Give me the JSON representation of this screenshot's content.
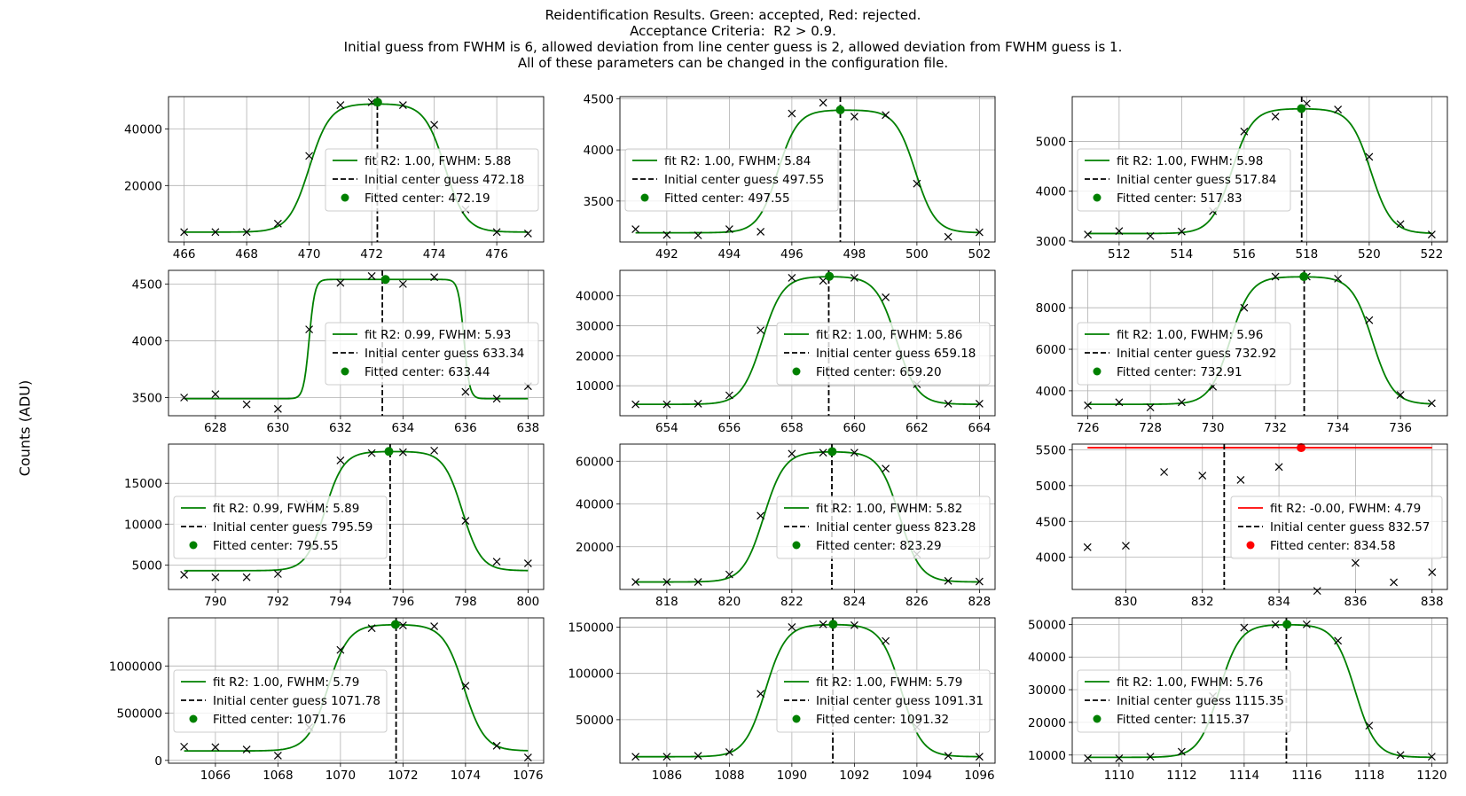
{
  "figure": {
    "title_lines": [
      "Reidentification Results. Green: accepted, Red: rejected.",
      "Acceptance Criteria:  R2 > 0.9.",
      "Initial guess from FWHM is 6, allowed deviation from line center guess is 2, allowed deviation from FWHM guess is 1.",
      "All of these parameters can be changed in the configuration file."
    ],
    "ylabel": "Counts (ADU)"
  },
  "colors": {
    "accepted": "#008000",
    "rejected": "#ff0000",
    "data_marker": "#000000",
    "grid": "#b0b0b0",
    "guess_line": "#000000"
  },
  "chart_data": [
    {
      "type": "line",
      "status": "accepted",
      "x": [
        466,
        467,
        468,
        469,
        470,
        471,
        472,
        473,
        474,
        475,
        476,
        477
      ],
      "y": [
        3500,
        3500,
        3500,
        6500,
        30500,
        48500,
        49500,
        48500,
        41500,
        11500,
        3500,
        3000
      ],
      "xlim": [
        465.5,
        477.5
      ],
      "ylim": [
        0,
        51500
      ],
      "xticks": [
        466,
        468,
        470,
        472,
        474,
        476
      ],
      "yticks": [
        20000,
        40000
      ],
      "fit": {
        "baseline": 3500,
        "peak": 49000,
        "left": 470.0,
        "right": 474.35,
        "steep": 0.33
      },
      "guess_center": 472.18,
      "fitted_center": 472.19,
      "fitted_peak": 49500,
      "legend": {
        "fit": "fit R2: 1.00, FWHM: 5.88",
        "guess": "Initial center guess 472.18",
        "center": "Fitted center: 472.19"
      },
      "legend_loc": "center right"
    },
    {
      "type": "line",
      "status": "accepted",
      "x": [
        491,
        492,
        493,
        494,
        495,
        496,
        497,
        498,
        499,
        500,
        501,
        502
      ],
      "y": [
        3225,
        3170,
        3165,
        3225,
        3200,
        4355,
        4460,
        4325,
        4340,
        3670,
        3150,
        3195
      ],
      "xlim": [
        490.5,
        502.5
      ],
      "ylim": [
        3100,
        4520
      ],
      "xticks": [
        492,
        494,
        496,
        498,
        500,
        502
      ],
      "yticks": [
        3500,
        4000,
        4500
      ],
      "fit": {
        "baseline": 3190,
        "peak": 4390,
        "left": 495.55,
        "right": 499.95,
        "steep": 0.32
      },
      "guess_center": 497.55,
      "fitted_center": 497.55,
      "fitted_peak": 4390,
      "legend": {
        "fit": "fit R2: 1.00, FWHM: 5.84",
        "guess": "Initial center guess 497.55",
        "center": "Fitted center: 497.55"
      },
      "legend_loc": "center left"
    },
    {
      "type": "line",
      "status": "accepted",
      "x": [
        511,
        512,
        513,
        514,
        515,
        516,
        517,
        518,
        519,
        520,
        521,
        522
      ],
      "y": [
        3130,
        3200,
        3100,
        3190,
        3600,
        5200,
        5500,
        5760,
        5640,
        4690,
        3340,
        3130
      ],
      "xlim": [
        510.5,
        522.5
      ],
      "ylim": [
        2980,
        5900
      ],
      "xticks": [
        512,
        514,
        516,
        518,
        520,
        522
      ],
      "yticks": [
        3000,
        4000,
        5000
      ],
      "fit": {
        "baseline": 3150,
        "peak": 5660,
        "left": 515.6,
        "right": 520.05,
        "steep": 0.33
      },
      "guess_center": 517.84,
      "fitted_center": 517.83,
      "fitted_peak": 5660,
      "legend": {
        "fit": "fit R2: 1.00, FWHM: 5.98",
        "guess": "Initial center guess 517.84",
        "center": "Fitted center: 517.83"
      },
      "legend_loc": "center left"
    },
    {
      "type": "line",
      "status": "accepted",
      "x": [
        627,
        628,
        629,
        630,
        631,
        632,
        633,
        634,
        635,
        636,
        637,
        638
      ],
      "y": [
        3500,
        3530,
        3440,
        3400,
        4100,
        4510,
        4570,
        4500,
        4560,
        3550,
        3490,
        3600
      ],
      "xlim": [
        626.5,
        638.5
      ],
      "ylim": [
        3340,
        4620
      ],
      "xticks": [
        628,
        630,
        632,
        634,
        636,
        638
      ],
      "yticks": [
        3500,
        4000,
        4500
      ],
      "fit": {
        "baseline": 3490,
        "peak": 4540,
        "left": 631.0,
        "right": 635.95,
        "steep": 0.09
      },
      "guess_center": 633.34,
      "fitted_center": 633.44,
      "fitted_peak": 4540,
      "legend": {
        "fit": "fit R2: 0.99, FWHM: 5.93",
        "guess": "Initial center guess 633.34",
        "center": "Fitted center: 633.44"
      },
      "legend_loc": "center right"
    },
    {
      "type": "line",
      "status": "accepted",
      "x": [
        653,
        654,
        655,
        656,
        657,
        658,
        659,
        660,
        661,
        662,
        663,
        664
      ],
      "y": [
        3800,
        3800,
        4000,
        6800,
        28500,
        46000,
        45000,
        46000,
        39500,
        10500,
        4000,
        4000
      ],
      "xlim": [
        652.5,
        664.5
      ],
      "ylim": [
        0,
        48500
      ],
      "xticks": [
        654,
        656,
        658,
        660,
        662,
        664
      ],
      "yticks": [
        10000,
        20000,
        30000,
        40000
      ],
      "fit": {
        "baseline": 3800,
        "peak": 46500,
        "left": 657.05,
        "right": 661.35,
        "steep": 0.33
      },
      "guess_center": 659.18,
      "fitted_center": 659.2,
      "fitted_peak": 46500,
      "legend": {
        "fit": "fit R2: 1.00, FWHM: 5.86",
        "guess": "Initial center guess 659.18",
        "center": "Fitted center: 659.20"
      },
      "legend_loc": "center right"
    },
    {
      "type": "line",
      "status": "accepted",
      "x": [
        726,
        727,
        728,
        729,
        730,
        731,
        732,
        733,
        734,
        735,
        736,
        737
      ],
      "y": [
        3300,
        3450,
        3200,
        3450,
        4200,
        8000,
        9500,
        9500,
        9400,
        7400,
        3800,
        3400
      ],
      "xlim": [
        725.5,
        737.5
      ],
      "ylim": [
        2800,
        9800
      ],
      "xticks": [
        726,
        728,
        730,
        732,
        734,
        736
      ],
      "yticks": [
        4000,
        6000,
        8000
      ],
      "fit": {
        "baseline": 3350,
        "peak": 9500,
        "left": 730.55,
        "right": 735.1,
        "steep": 0.33
      },
      "guess_center": 732.92,
      "fitted_center": 732.91,
      "fitted_peak": 9500,
      "legend": {
        "fit": "fit R2: 1.00, FWHM: 5.96",
        "guess": "Initial center guess 732.92",
        "center": "Fitted center: 732.91"
      },
      "legend_loc": "center left"
    },
    {
      "type": "line",
      "status": "accepted",
      "x": [
        789,
        790,
        791,
        792,
        793,
        794,
        795,
        796,
        797,
        798,
        799,
        800
      ],
      "y": [
        3800,
        3500,
        3500,
        3900,
        12500,
        17800,
        18700,
        18800,
        19000,
        10400,
        5400,
        5200
      ],
      "xlim": [
        788.5,
        800.5
      ],
      "ylim": [
        2000,
        19800
      ],
      "xticks": [
        790,
        792,
        794,
        796,
        798,
        800
      ],
      "yticks": [
        5000,
        10000,
        15000
      ],
      "fit": {
        "baseline": 4300,
        "peak": 18900,
        "left": 793.5,
        "right": 797.9,
        "steep": 0.3
      },
      "guess_center": 795.59,
      "fitted_center": 795.55,
      "fitted_peak": 18900,
      "legend": {
        "fit": "fit R2: 0.99, FWHM: 5.89",
        "guess": "Initial center guess 795.59",
        "center": "Fitted center: 795.55"
      },
      "legend_loc": "center left"
    },
    {
      "type": "line",
      "status": "accepted",
      "x": [
        817,
        818,
        819,
        820,
        821,
        822,
        823,
        824,
        825,
        826,
        827,
        828
      ],
      "y": [
        3500,
        3500,
        3500,
        7000,
        34500,
        63500,
        64000,
        64000,
        56500,
        16500,
        4000,
        3700
      ],
      "xlim": [
        816.5,
        828.5
      ],
      "ylim": [
        0,
        68000
      ],
      "xticks": [
        818,
        820,
        822,
        824,
        826,
        828
      ],
      "yticks": [
        20000,
        40000,
        60000
      ],
      "fit": {
        "baseline": 3500,
        "peak": 64500,
        "left": 821.1,
        "right": 825.45,
        "steep": 0.33
      },
      "guess_center": 823.28,
      "fitted_center": 823.29,
      "fitted_peak": 64500,
      "legend": {
        "fit": "fit R2: 1.00, FWHM: 5.82",
        "guess": "Initial center guess 823.28",
        "center": "Fitted center: 823.29"
      },
      "legend_loc": "center right"
    },
    {
      "type": "line",
      "status": "rejected",
      "x": [
        829,
        830,
        831,
        832,
        833,
        834,
        835,
        836,
        837,
        838
      ],
      "y": [
        4140,
        4160,
        5190,
        5140,
        5080,
        5260,
        3530,
        3920,
        3650,
        3790
      ],
      "xlim": [
        828.6,
        838.4
      ],
      "ylim": [
        3550,
        5580
      ],
      "xticks": [
        830,
        832,
        834,
        836,
        838
      ],
      "yticks": [
        4000,
        4500,
        5000,
        5500
      ],
      "flat_fit": 5530,
      "guess_center": 832.57,
      "fitted_center": 834.58,
      "fitted_peak": 5530,
      "legend": {
        "fit": "fit R2: -0.00, FWHM: 4.79",
        "guess": "Initial center guess 832.57",
        "center": "Fitted center: 834.58"
      },
      "legend_loc": "center right"
    },
    {
      "type": "line",
      "status": "accepted",
      "x": [
        1065,
        1066,
        1067,
        1068,
        1069,
        1070,
        1071,
        1072,
        1073,
        1074,
        1075,
        1076
      ],
      "y": [
        145000,
        140000,
        115000,
        50000,
        350000,
        1170000,
        1400000,
        1430000,
        1420000,
        790000,
        155000,
        30000
      ],
      "xlim": [
        1064.5,
        1076.5
      ],
      "ylim": [
        -30000,
        1510000
      ],
      "xticks": [
        1066,
        1068,
        1070,
        1072,
        1074,
        1076
      ],
      "yticks": [
        0,
        500000,
        1000000
      ],
      "fit": {
        "baseline": 100000,
        "peak": 1440000,
        "left": 1069.6,
        "right": 1073.95,
        "steep": 0.33
      },
      "guess_center": 1071.78,
      "fitted_center": 1071.76,
      "fitted_peak": 1440000,
      "legend": {
        "fit": "fit R2: 1.00, FWHM: 5.79",
        "guess": "Initial center guess 1071.78",
        "center": "Fitted center: 1071.76"
      },
      "legend_loc": "center left"
    },
    {
      "type": "line",
      "status": "accepted",
      "x": [
        1085,
        1086,
        1087,
        1088,
        1089,
        1090,
        1091,
        1092,
        1093,
        1094,
        1095,
        1096
      ],
      "y": [
        10000,
        10000,
        11000,
        15000,
        78000,
        150000,
        153000,
        152000,
        135000,
        42000,
        11000,
        10000
      ],
      "xlim": [
        1084.5,
        1096.5
      ],
      "ylim": [
        3000,
        160000
      ],
      "xticks": [
        1086,
        1088,
        1090,
        1092,
        1094,
        1096
      ],
      "yticks": [
        50000,
        100000,
        150000
      ],
      "fit": {
        "baseline": 10000,
        "peak": 153000,
        "left": 1089.15,
        "right": 1093.5,
        "steep": 0.33
      },
      "guess_center": 1091.31,
      "fitted_center": 1091.32,
      "fitted_peak": 153000,
      "legend": {
        "fit": "fit R2: 1.00, FWHM: 5.79",
        "guess": "Initial center guess 1091.31",
        "center": "Fitted center: 1091.32"
      },
      "legend_loc": "center right"
    },
    {
      "type": "line",
      "status": "accepted",
      "x": [
        1109,
        1110,
        1111,
        1112,
        1113,
        1114,
        1115,
        1116,
        1117,
        1118,
        1119,
        1120
      ],
      "y": [
        9000,
        9000,
        9500,
        11000,
        28000,
        49000,
        50000,
        50000,
        45000,
        19000,
        10000,
        9500
      ],
      "xlim": [
        1108.5,
        1120.5
      ],
      "ylim": [
        7500,
        52000
      ],
      "xticks": [
        1110,
        1112,
        1114,
        1116,
        1118,
        1120
      ],
      "yticks": [
        10000,
        20000,
        30000,
        40000,
        50000
      ],
      "fit": {
        "baseline": 9300,
        "peak": 50000,
        "left": 1113.2,
        "right": 1117.55,
        "steep": 0.33
      },
      "guess_center": 1115.35,
      "fitted_center": 1115.37,
      "fitted_peak": 50000,
      "legend": {
        "fit": "fit R2: 1.00, FWHM: 5.76",
        "guess": "Initial center guess 1115.35",
        "center": "Fitted center: 1115.37"
      },
      "legend_loc": "center left"
    }
  ]
}
